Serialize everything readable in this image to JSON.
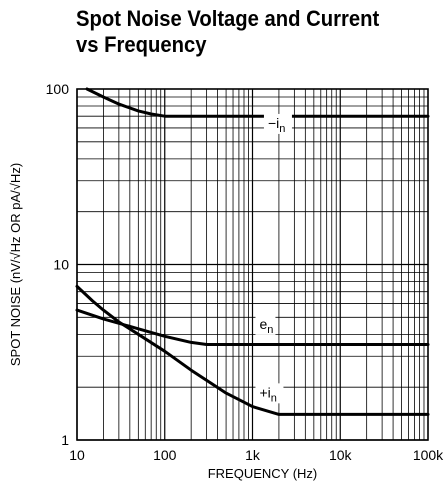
{
  "chart_data": {
    "type": "line",
    "title_line1": "Spot Noise Voltage and Current",
    "title_line2": "vs Frequency",
    "xlabel": "FREQUENCY (Hz)",
    "ylabel": "SPOT NOISE (nV/√Hz OR pA/√Hz)",
    "xscale": "log",
    "yscale": "log",
    "xlim": [
      10,
      100000
    ],
    "ylim": [
      1,
      100
    ],
    "grid": true,
    "x_ticks": [
      {
        "value": 10,
        "label": "10"
      },
      {
        "value": 100,
        "label": "100"
      },
      {
        "value": 1000,
        "label": "1k"
      },
      {
        "value": 10000,
        "label": "10k"
      },
      {
        "value": 100000,
        "label": "100k"
      }
    ],
    "y_ticks": [
      {
        "value": 1,
        "label": "1"
      },
      {
        "value": 10,
        "label": "10"
      },
      {
        "value": 100,
        "label": "100"
      }
    ],
    "series": [
      {
        "name": "−in",
        "label_main": "−i",
        "label_sub": "n",
        "label_at": [
          1500,
          60
        ],
        "x": [
          13,
          20,
          30,
          50,
          70,
          100,
          150,
          300,
          1000,
          10000,
          100000
        ],
        "y": [
          100,
          90,
          82,
          75,
          72,
          70,
          70,
          70,
          70,
          70,
          70
        ]
      },
      {
        "name": "en",
        "label_main": "e",
        "label_sub": "n",
        "label_at": [
          1200,
          4.3
        ],
        "x": [
          10,
          20,
          50,
          100,
          200,
          300,
          1000,
          10000,
          100000
        ],
        "y": [
          5.5,
          4.9,
          4.3,
          3.9,
          3.6,
          3.5,
          3.5,
          3.5,
          3.5
        ]
      },
      {
        "name": "+in",
        "label_main": "+i",
        "label_sub": "n",
        "label_at": [
          1200,
          1.75
        ],
        "x": [
          10,
          15,
          20,
          30,
          50,
          100,
          200,
          500,
          1000,
          2000,
          10000,
          100000
        ],
        "y": [
          7.5,
          6.2,
          5.5,
          4.7,
          4.0,
          3.2,
          2.5,
          1.85,
          1.55,
          1.4,
          1.4,
          1.4
        ]
      }
    ]
  }
}
